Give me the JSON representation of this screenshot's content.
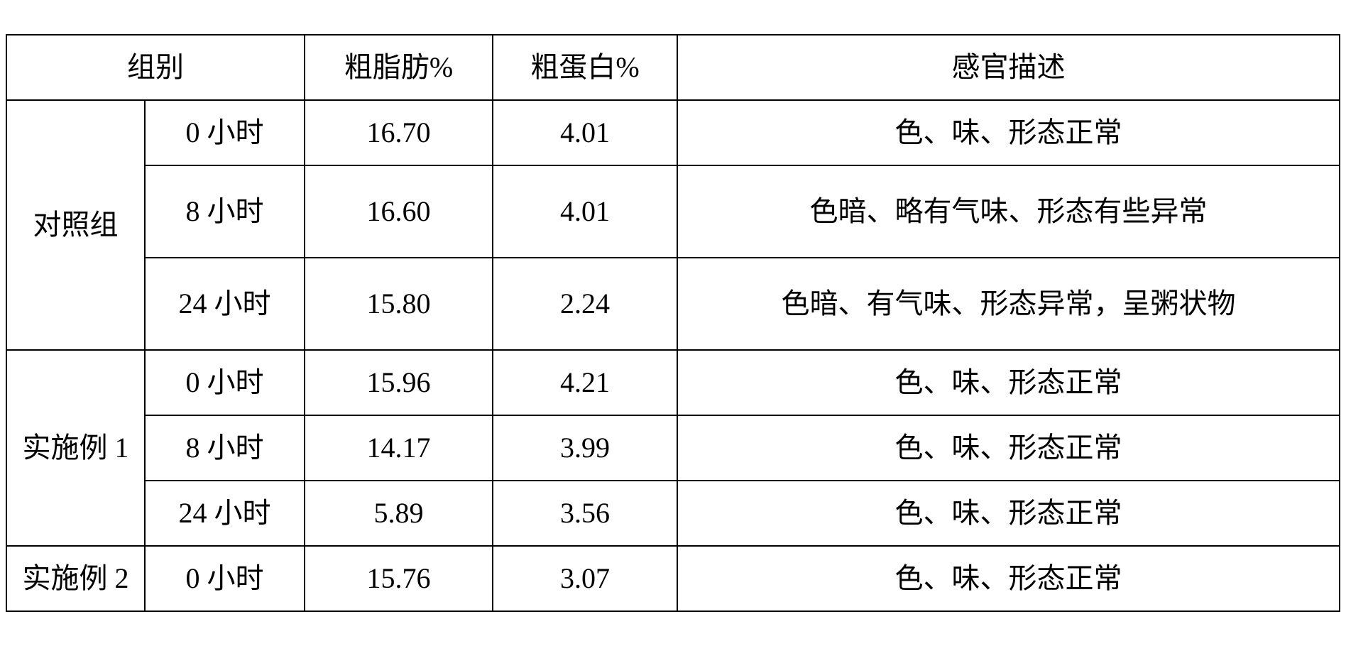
{
  "table": {
    "font_size_pt": 30,
    "font_family": "SimSun",
    "border_color": "#000000",
    "text_color": "#000000",
    "background_color": "#ffffff",
    "header": {
      "group": "组别",
      "fat": "粗脂肪%",
      "protein": "粗蛋白%",
      "desc": "感官描述"
    },
    "groups": [
      {
        "name": "对照组",
        "rows": [
          {
            "time": "0 小时",
            "fat": "16.70",
            "protein": "4.01",
            "desc": "色、味、形态正常"
          },
          {
            "time": "8 小时",
            "fat": "16.60",
            "protein": "4.01",
            "desc": "色暗、略有气味、形态有些异常"
          },
          {
            "time": "24 小时",
            "fat": "15.80",
            "protein": "2.24",
            "desc": "色暗、有气味、形态异常，呈粥状物"
          }
        ]
      },
      {
        "name": "实施例 1",
        "rows": [
          {
            "time": "0 小时",
            "fat": "15.96",
            "protein": "4.21",
            "desc": "色、味、形态正常"
          },
          {
            "time": "8 小时",
            "fat": "14.17",
            "protein": "3.99",
            "desc": "色、味、形态正常"
          },
          {
            "time": "24 小时",
            "fat": "5.89",
            "protein": "3.56",
            "desc": "色、味、形态正常"
          }
        ]
      },
      {
        "name": "实施例 2",
        "rows": [
          {
            "time": "0 小时",
            "fat": "15.76",
            "protein": "3.07",
            "desc": "色、味、形态正常"
          }
        ]
      }
    ]
  }
}
